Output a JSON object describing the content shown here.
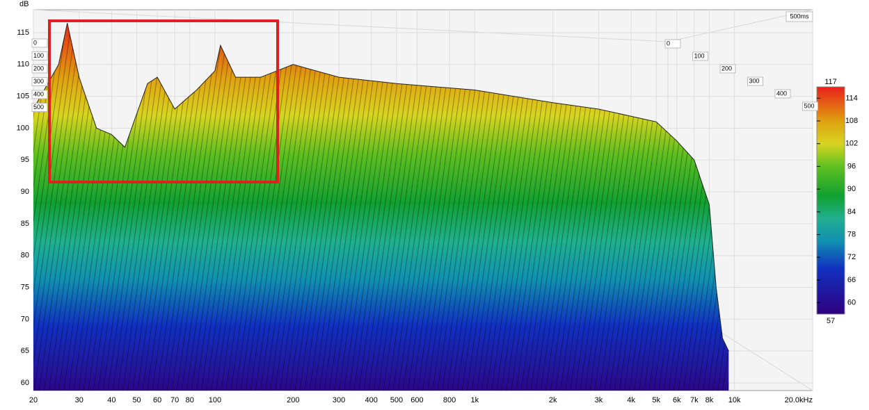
{
  "chart_data": {
    "type": "waterfall",
    "ylabel": "dB",
    "xlim": [
      20,
      20000
    ],
    "log_x": true,
    "xticks": [
      20,
      30,
      40,
      50,
      60,
      70,
      80,
      100,
      200,
      300,
      400,
      500,
      600,
      800,
      {
        "value": 1000,
        "label": "1k"
      },
      {
        "value": 2000,
        "label": "2k"
      },
      {
        "value": 3000,
        "label": "3k"
      },
      {
        "value": 4000,
        "label": "4k"
      },
      {
        "value": 5000,
        "label": "5k"
      },
      {
        "value": 6000,
        "label": "6k"
      },
      {
        "value": 7000,
        "label": "7k"
      },
      {
        "value": 8000,
        "label": "8k"
      },
      {
        "value": 10000,
        "label": "10k"
      },
      {
        "value": 20000,
        "label": "20.0kHz"
      }
    ],
    "ylim": [
      58.8,
      118.6
    ],
    "yticks": [
      60,
      65,
      70,
      75,
      80,
      85,
      90,
      95,
      100,
      105,
      110,
      115
    ],
    "time_ticks": [
      0,
      100,
      200,
      300,
      400,
      500
    ],
    "time_end_label": "500ms",
    "colorbar_lim": [
      57,
      117
    ],
    "colorbar_ticks": [
      60,
      66,
      72,
      78,
      84,
      90,
      96,
      102,
      108,
      114
    ],
    "envelope": {
      "x": [
        20,
        25,
        27,
        30,
        35,
        40,
        45,
        55,
        60,
        70,
        85,
        100,
        105,
        120,
        150,
        200,
        300,
        500,
        1000,
        2000,
        3000,
        5000,
        6000,
        7000,
        8000,
        8500,
        9000,
        9500
      ],
      "values": [
        103,
        110,
        116.5,
        108,
        100,
        99,
        97,
        107,
        108,
        103,
        106,
        109,
        113,
        108,
        108,
        110,
        108,
        107,
        106,
        104,
        103,
        101,
        98,
        95,
        88,
        75,
        67,
        65
      ]
    }
  }
}
